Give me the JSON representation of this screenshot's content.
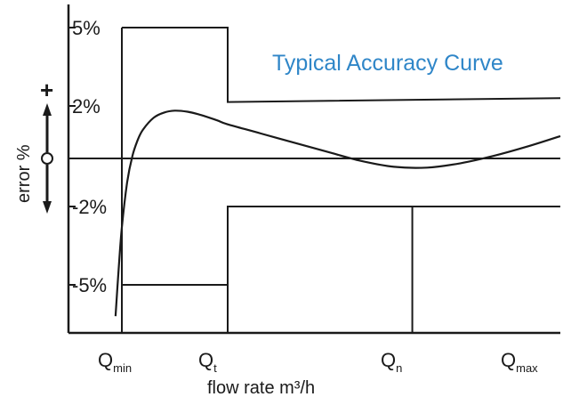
{
  "chart_data": {
    "type": "line",
    "title": "Typical Accuracy Curve",
    "xlabel": "flow rate m³/h",
    "ylabel": "error %",
    "y_ticks": [
      "5%",
      "2%",
      "-2%",
      "-5%"
    ],
    "y_tick_values": [
      5,
      2,
      -2,
      -5
    ],
    "x_ticks": [
      {
        "main": "Q",
        "sub": "min"
      },
      {
        "main": "Q",
        "sub": "t"
      },
      {
        "main": "Q",
        "sub": "n"
      },
      {
        "main": "Q",
        "sub": "max"
      }
    ],
    "indicator": {
      "plus": "+",
      "minus": "−"
    },
    "ylim": [
      -7,
      6.2
    ],
    "grid": false,
    "legend": "none",
    "error_limits": {
      "upper": [
        [
          0.0,
          5
        ],
        [
          1.0,
          5
        ],
        [
          1.0,
          2.15
        ],
        [
          3.0,
          2.3
        ]
      ],
      "lower": [
        [
          0.0,
          -5
        ],
        [
          1.0,
          -5
        ],
        [
          1.0,
          -2
        ],
        [
          3.0,
          -2
        ]
      ],
      "qn_divider": 2.11
    },
    "series": [
      {
        "x": [
          -0.06,
          -0.03,
          0.0,
          0.05,
          0.1,
          0.15,
          0.2,
          0.3,
          0.4,
          0.5,
          0.62,
          0.75,
          0.9,
          1.0,
          1.2,
          1.4,
          1.6,
          1.8,
          2.0,
          2.2,
          2.4,
          2.6,
          2.8,
          3.0
        ],
        "y": [
          -6.2,
          -4.4,
          -2.8,
          -1.0,
          0.1,
          0.7,
          1.1,
          1.55,
          1.75,
          1.82,
          1.78,
          1.65,
          1.45,
          1.3,
          0.95,
          0.6,
          0.25,
          -0.1,
          -0.35,
          -0.38,
          -0.2,
          0.1,
          0.45,
          0.85
        ]
      }
    ],
    "colors": {
      "title": "#2f86c8",
      "ink": "#1a1a1a"
    }
  }
}
